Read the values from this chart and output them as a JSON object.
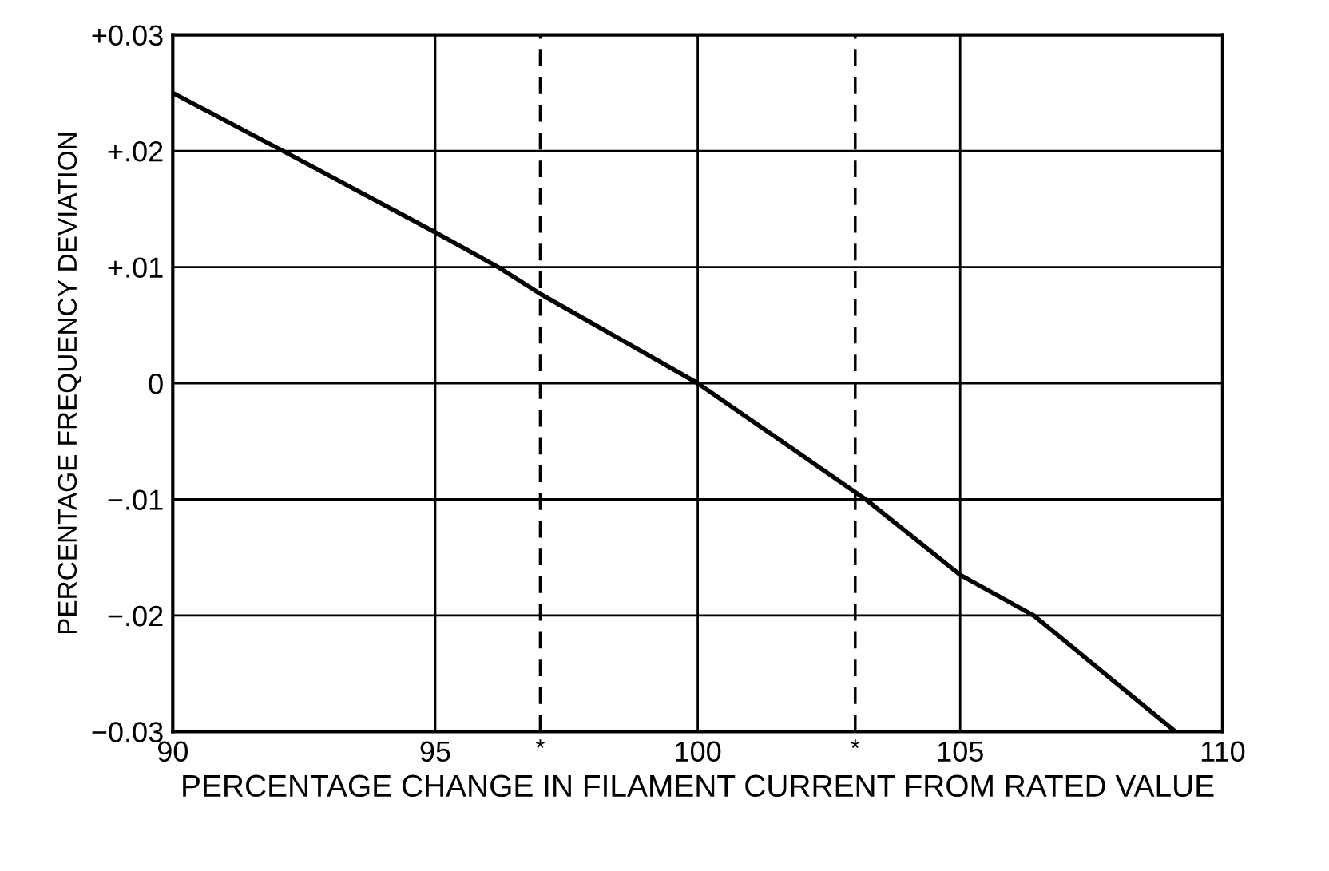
{
  "chart_data": {
    "type": "line",
    "xlabel": "PERCENTAGE CHANGE IN FILAMENT CURRENT FROM RATED VALUE",
    "ylabel": "PERCENTAGE FREQUENCY DEVIATION",
    "series": [
      {
        "color": "#000000",
        "x": [
          90,
          92.1,
          95,
          96.2,
          97,
          100,
          103.2,
          105,
          106.4,
          109.1
        ],
        "values": [
          0.025,
          0.02,
          0.013,
          0.01,
          0.0077,
          0,
          -0.01,
          -0.0165,
          -0.02,
          -0.03
        ]
      }
    ],
    "xlim": [
      90,
      110
    ],
    "xticks": [
      90,
      95,
      100,
      105,
      110
    ],
    "ylim": [
      -0.03,
      0.03
    ],
    "yticks": [
      {
        "value": 0.03,
        "label": "+0.03"
      },
      {
        "value": 0.02,
        "label": "+.02"
      },
      {
        "value": 0.01,
        "label": "+.01"
      },
      0,
      {
        "value": -0.01,
        "label": "−.01"
      },
      {
        "value": -0.02,
        "label": "−.02"
      },
      {
        "value": -0.03,
        "label": "−0.03"
      }
    ],
    "ref_lines": [
      {
        "axis": "x",
        "value": 97,
        "label": "*",
        "color": "#000000",
        "line_style": "dashed"
      },
      {
        "axis": "x",
        "value": 103,
        "label": "*",
        "color": "#000000",
        "line_style": "dashed"
      }
    ],
    "grid": true,
    "marker": "none",
    "line_style": "solid"
  }
}
